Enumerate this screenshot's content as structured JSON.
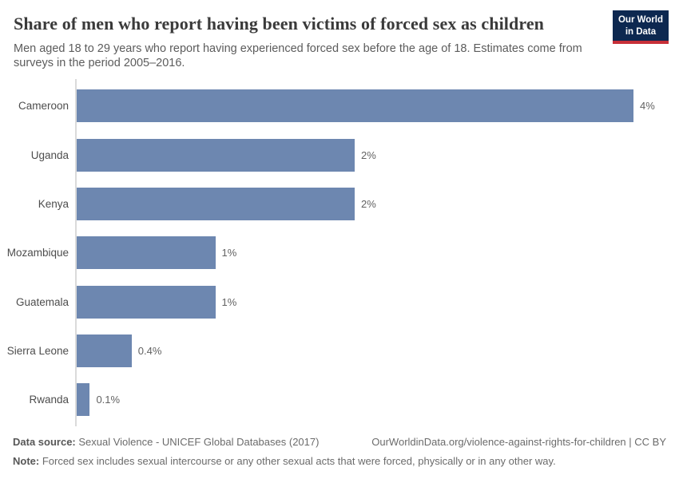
{
  "header": {
    "title": "Share of men who report having been victims of forced sex as children",
    "subtitle": "Men aged 18 to 29 years who report having experienced forced sex before the age of 18. Estimates come from surveys in the period 2005–2016.",
    "logo": {
      "line1": "Our World",
      "line2": "in Data",
      "bg_color": "#0d2850",
      "accent_color": "#c72f38"
    }
  },
  "chart_data": {
    "type": "bar",
    "orientation": "horizontal",
    "title": "Share of men who report having been victims of forced sex as children",
    "xlabel": "",
    "ylabel": "",
    "grid": false,
    "xlim": [
      0,
      4
    ],
    "categories": [
      "Cameroon",
      "Uganda",
      "Kenya",
      "Mozambique",
      "Guatemala",
      "Sierra Leone",
      "Rwanda"
    ],
    "values": [
      4,
      2,
      2,
      1,
      1,
      0.4,
      0.1
    ],
    "value_labels": [
      "4%",
      "2%",
      "2%",
      "1%",
      "1%",
      "0.4%",
      "0.1%"
    ],
    "bar_color": "#6d87b0",
    "axis_color": "#dadada"
  },
  "footer": {
    "source_label": "Data source:",
    "source_text": " Sexual Violence - UNICEF Global Databases (2017)",
    "url_text": "OurWorldinData.org/violence-against-rights-for-children | CC BY",
    "note_label": "Note:",
    "note_text": " Forced sex includes sexual intercourse or any other sexual acts that were forced, physically or in any other way."
  }
}
